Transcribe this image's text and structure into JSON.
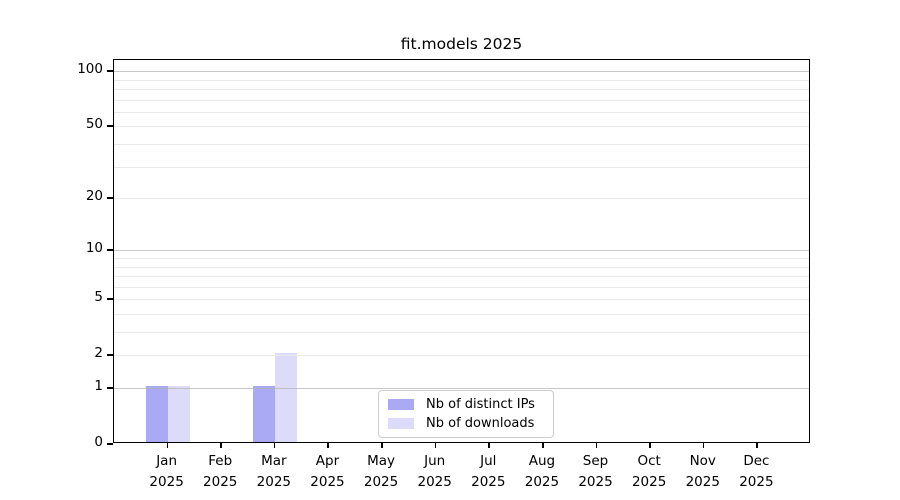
{
  "chart_data": {
    "type": "bar",
    "title": "fit.models 2025",
    "categories": [
      "Jan",
      "Feb",
      "Mar",
      "Apr",
      "May",
      "Jun",
      "Jul",
      "Aug",
      "Sep",
      "Oct",
      "Nov",
      "Dec"
    ],
    "category_year": "2025",
    "series": [
      {
        "name": "Nb of distinct IPs",
        "color": "#a9a9f4",
        "values": [
          1,
          0,
          1,
          0,
          0,
          0,
          0,
          0,
          0,
          0,
          0,
          0
        ]
      },
      {
        "name": "Nb of downloads",
        "color": "#dcdcfa",
        "values": [
          1,
          0,
          2,
          0,
          0,
          0,
          0,
          0,
          0,
          0,
          0,
          0
        ]
      }
    ],
    "yscale": "log1p",
    "ylim": [
      0,
      115
    ],
    "ytick_values": [
      0,
      1,
      2,
      5,
      10,
      20,
      50,
      100
    ],
    "grid_major_values": [
      1,
      10,
      100
    ],
    "grid_minor_values": [
      2,
      3,
      4,
      5,
      6,
      7,
      8,
      9,
      20,
      30,
      40,
      50,
      60,
      70,
      80,
      90
    ],
    "grid": "on",
    "legend_position": "lower center",
    "colors": {
      "grid_major": "#b5b5b5",
      "grid_minor": "#e9e9e9",
      "axis": "#000000",
      "background": "#ffffff",
      "legend_border": "#cccccc"
    }
  }
}
